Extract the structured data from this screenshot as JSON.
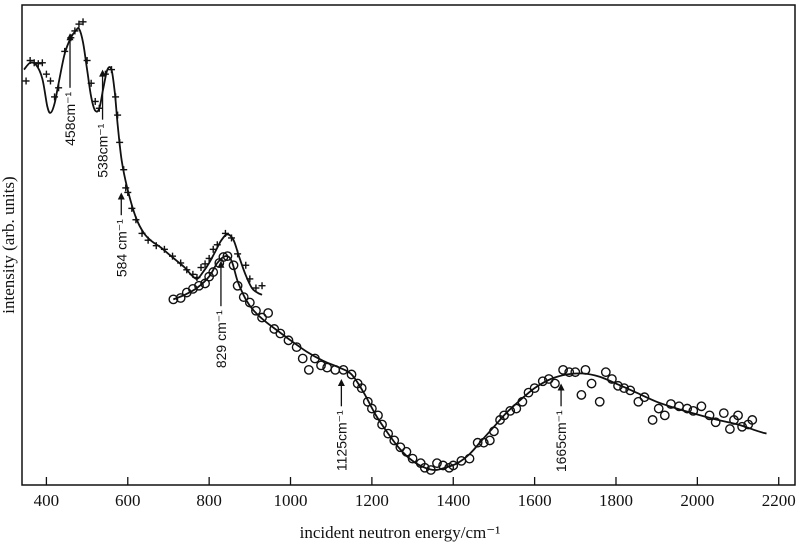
{
  "chart_data": {
    "type": "scatter",
    "xlabel": "incident neutron energy/cm⁻¹",
    "ylabel": "intensity (arb. units)",
    "xlim": [
      340,
      2240
    ],
    "ylim": [
      0,
      100
    ],
    "xticks": [
      400,
      600,
      800,
      1000,
      1200,
      1400,
      1600,
      1800,
      2000,
      2200
    ],
    "xtick_labels": [
      "400",
      "600",
      "800",
      "1000",
      "1200",
      "1400",
      "1600",
      "1800",
      "2000",
      "2200"
    ],
    "y_ticks_shown": false,
    "grid": false,
    "legend": "none",
    "series": [
      {
        "marker": "plus",
        "points": [
          [
            350,
            85.5
          ],
          [
            360,
            90.0
          ],
          [
            370,
            89.5
          ],
          [
            380,
            89.3
          ],
          [
            390,
            89.5
          ],
          [
            400,
            87.0
          ],
          [
            410,
            85.5
          ],
          [
            420,
            82.0
          ],
          [
            430,
            84.0
          ],
          [
            445,
            92.0
          ],
          [
            460,
            95.0
          ],
          [
            470,
            96.5
          ],
          [
            480,
            98.0
          ],
          [
            490,
            98.5
          ],
          [
            500,
            90.0
          ],
          [
            510,
            85.0
          ],
          [
            520,
            81.0
          ],
          [
            530,
            79.5
          ],
          [
            545,
            87.0
          ],
          [
            560,
            88.0
          ],
          [
            570,
            82.0
          ],
          [
            575,
            78.0
          ],
          [
            580,
            72.0
          ],
          [
            590,
            66.0
          ],
          [
            595,
            62.0
          ],
          [
            600,
            61.0
          ],
          [
            610,
            57.5
          ],
          [
            620,
            55.0
          ],
          [
            635,
            52.0
          ],
          [
            650,
            50.5
          ],
          [
            670,
            49.3
          ],
          [
            690,
            48.5
          ],
          [
            710,
            47.0
          ],
          [
            730,
            45.5
          ],
          [
            745,
            44.0
          ],
          [
            760,
            43.0
          ],
          [
            770,
            42.3
          ],
          [
            780,
            44.5
          ],
          [
            790,
            45.3
          ],
          [
            800,
            46.5
          ],
          [
            810,
            48.5
          ],
          [
            820,
            49.5
          ],
          [
            840,
            52.0
          ],
          [
            855,
            51.0
          ],
          [
            870,
            47.5
          ],
          [
            890,
            45.0
          ],
          [
            900,
            42.0
          ],
          [
            915,
            40.0
          ],
          [
            930,
            40.5
          ]
        ],
        "curve": [
          [
            345,
            88.0
          ],
          [
            360,
            89.5
          ],
          [
            375,
            89.0
          ],
          [
            390,
            86.0
          ],
          [
            402,
            80.0
          ],
          [
            410,
            78.5
          ],
          [
            420,
            80.5
          ],
          [
            430,
            85.0
          ],
          [
            445,
            91.5
          ],
          [
            460,
            95.0
          ],
          [
            472,
            96.5
          ],
          [
            480,
            97.0
          ],
          [
            490,
            94.0
          ],
          [
            500,
            88.0
          ],
          [
            510,
            82.0
          ],
          [
            520,
            79.0
          ],
          [
            530,
            79.5
          ],
          [
            540,
            84.0
          ],
          [
            550,
            88.0
          ],
          [
            560,
            88.0
          ],
          [
            568,
            83.0
          ],
          [
            575,
            76.0
          ],
          [
            585,
            68.0
          ],
          [
            600,
            61.5
          ],
          [
            620,
            55.5
          ],
          [
            640,
            52.0
          ],
          [
            660,
            50.2
          ],
          [
            680,
            49.0
          ],
          [
            700,
            47.5
          ],
          [
            720,
            46.0
          ],
          [
            740,
            44.5
          ],
          [
            755,
            43.0
          ],
          [
            770,
            42.0
          ],
          [
            785,
            43.5
          ],
          [
            800,
            45.5
          ],
          [
            815,
            48.0
          ],
          [
            830,
            50.5
          ],
          [
            845,
            51.8
          ],
          [
            860,
            50.5
          ],
          [
            875,
            46.5
          ],
          [
            890,
            42.8
          ],
          [
            905,
            40.0
          ],
          [
            918,
            39.0
          ],
          [
            930,
            38.5
          ]
        ]
      },
      {
        "marker": "circle",
        "points": [
          [
            712,
            37.5
          ],
          [
            730,
            37.8
          ],
          [
            745,
            39.0
          ],
          [
            760,
            39.8
          ],
          [
            775,
            40.5
          ],
          [
            790,
            41.0
          ],
          [
            800,
            42.5
          ],
          [
            810,
            43.5
          ],
          [
            825,
            45.5
          ],
          [
            835,
            46.8
          ],
          [
            845,
            47.0
          ],
          [
            860,
            45.0
          ],
          [
            870,
            40.5
          ],
          [
            885,
            38.0
          ],
          [
            900,
            36.8
          ],
          [
            915,
            35.0
          ],
          [
            930,
            33.5
          ],
          [
            945,
            34.5
          ],
          [
            960,
            31.0
          ],
          [
            975,
            30.0
          ],
          [
            995,
            28.5
          ],
          [
            1015,
            27.0
          ],
          [
            1030,
            24.5
          ],
          [
            1045,
            22.0
          ],
          [
            1060,
            24.5
          ],
          [
            1075,
            23.0
          ],
          [
            1090,
            22.5
          ],
          [
            1110,
            22.0
          ],
          [
            1130,
            22.0
          ],
          [
            1150,
            21.0
          ],
          [
            1165,
            19.0
          ],
          [
            1175,
            18.0
          ],
          [
            1190,
            15.0
          ],
          [
            1200,
            13.5
          ],
          [
            1215,
            12.0
          ],
          [
            1225,
            10.0
          ],
          [
            1240,
            8.0
          ],
          [
            1255,
            6.5
          ],
          [
            1270,
            5.0
          ],
          [
            1285,
            4.0
          ],
          [
            1300,
            2.5
          ],
          [
            1320,
            1.5
          ],
          [
            1330,
            0.5
          ],
          [
            1345,
            0.0
          ],
          [
            1360,
            1.5
          ],
          [
            1375,
            1.0
          ],
          [
            1390,
            0.5
          ],
          [
            1400,
            1.0
          ],
          [
            1420,
            2.0
          ],
          [
            1440,
            2.5
          ],
          [
            1460,
            6.0
          ],
          [
            1475,
            6.0
          ],
          [
            1490,
            6.5
          ],
          [
            1500,
            8.5
          ],
          [
            1515,
            11.0
          ],
          [
            1525,
            12.0
          ],
          [
            1540,
            13.0
          ],
          [
            1555,
            13.5
          ],
          [
            1570,
            15.0
          ],
          [
            1585,
            17.0
          ],
          [
            1600,
            18.0
          ],
          [
            1620,
            19.5
          ],
          [
            1635,
            20.0
          ],
          [
            1650,
            19.0
          ],
          [
            1670,
            22.0
          ],
          [
            1685,
            21.5
          ],
          [
            1700,
            21.5
          ],
          [
            1715,
            16.5
          ],
          [
            1725,
            22.0
          ],
          [
            1740,
            19.0
          ],
          [
            1760,
            15.0
          ],
          [
            1775,
            21.5
          ],
          [
            1790,
            20.0
          ],
          [
            1805,
            18.5
          ],
          [
            1820,
            18.0
          ],
          [
            1835,
            17.5
          ],
          [
            1855,
            15.0
          ],
          [
            1870,
            16.0
          ],
          [
            1890,
            11.0
          ],
          [
            1905,
            13.5
          ],
          [
            1920,
            12.0
          ],
          [
            1935,
            14.5
          ],
          [
            1955,
            14.0
          ],
          [
            1975,
            13.5
          ],
          [
            1990,
            13.0
          ],
          [
            2010,
            14.0
          ],
          [
            2030,
            12.0
          ],
          [
            2045,
            10.5
          ],
          [
            2065,
            12.5
          ],
          [
            2080,
            9.0
          ],
          [
            2090,
            11.0
          ],
          [
            2100,
            12.0
          ],
          [
            2110,
            9.5
          ],
          [
            2125,
            10.0
          ],
          [
            2135,
            11.0
          ]
        ],
        "curve": [
          [
            712,
            37.5
          ],
          [
            740,
            38.5
          ],
          [
            770,
            40.0
          ],
          [
            800,
            42.5
          ],
          [
            820,
            45.5
          ],
          [
            840,
            47.0
          ],
          [
            855,
            46.0
          ],
          [
            870,
            41.5
          ],
          [
            890,
            37.5
          ],
          [
            910,
            35.0
          ],
          [
            940,
            32.5
          ],
          [
            970,
            30.5
          ],
          [
            1000,
            28.5
          ],
          [
            1040,
            26.0
          ],
          [
            1080,
            24.0
          ],
          [
            1120,
            22.5
          ],
          [
            1150,
            21.0
          ],
          [
            1180,
            17.0
          ],
          [
            1210,
            12.0
          ],
          [
            1240,
            8.0
          ],
          [
            1270,
            4.5
          ],
          [
            1300,
            2.0
          ],
          [
            1330,
            0.5
          ],
          [
            1355,
            0.0
          ],
          [
            1380,
            0.5
          ],
          [
            1410,
            1.5
          ],
          [
            1440,
            3.5
          ],
          [
            1470,
            6.5
          ],
          [
            1500,
            9.5
          ],
          [
            1530,
            12.5
          ],
          [
            1560,
            15.0
          ],
          [
            1600,
            18.0
          ],
          [
            1640,
            20.0
          ],
          [
            1680,
            21.0
          ],
          [
            1720,
            21.2
          ],
          [
            1760,
            20.5
          ],
          [
            1800,
            19.0
          ],
          [
            1850,
            17.0
          ],
          [
            1900,
            15.0
          ],
          [
            1950,
            13.5
          ],
          [
            2000,
            12.2
          ],
          [
            2050,
            11.0
          ],
          [
            2100,
            10.0
          ],
          [
            2150,
            8.5
          ],
          [
            2170,
            8.0
          ]
        ]
      }
    ],
    "annotations": [
      {
        "label": "458cm⁻¹",
        "x": 458,
        "arrow_y_from": 84,
        "arrow_y_to": 96
      },
      {
        "label": "538cm⁻¹",
        "x": 538,
        "arrow_y_from": 77,
        "arrow_y_to": 88
      },
      {
        "label": "584 cm⁻¹",
        "x": 584,
        "arrow_y_from": 56,
        "arrow_y_to": 61
      },
      {
        "label": "829 cm⁻¹",
        "x": 829,
        "arrow_y_from": 36,
        "arrow_y_to": 46
      },
      {
        "label": "1125cm⁻¹",
        "x": 1125,
        "arrow_y_from": 14,
        "arrow_y_to": 20
      },
      {
        "label": "1665cm⁻¹",
        "x": 1665,
        "arrow_y_from": 14,
        "arrow_y_to": 19
      }
    ]
  }
}
